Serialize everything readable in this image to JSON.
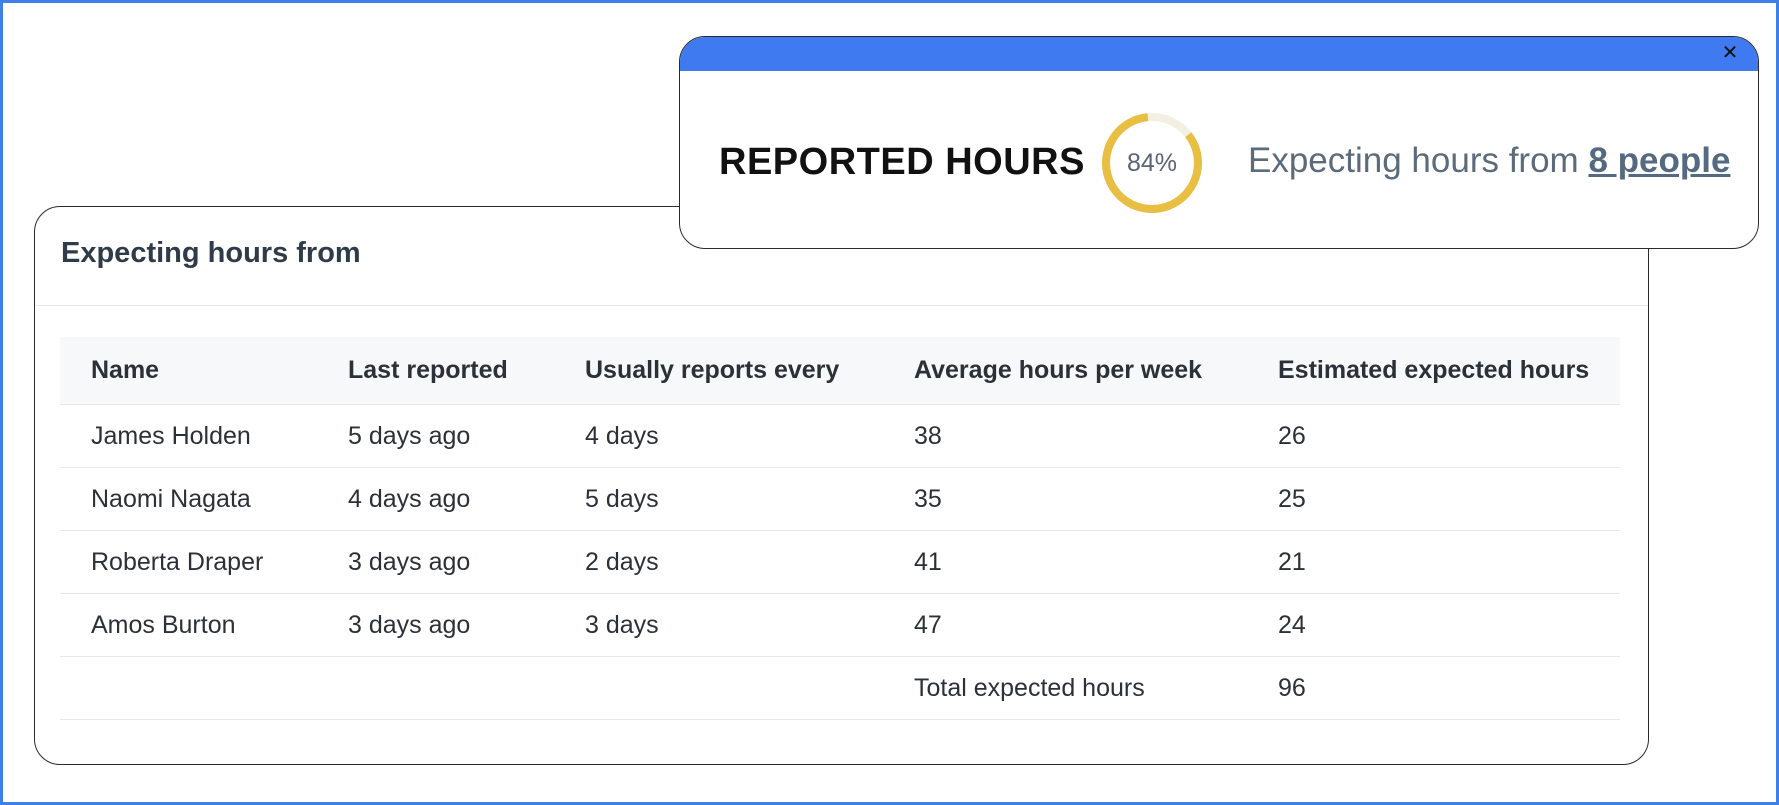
{
  "card": {
    "title": "Expecting hours from",
    "columns": [
      "Name",
      "Last reported",
      "Usually reports every",
      "Average hours per week",
      "Estimated expected hours"
    ],
    "rows": [
      [
        "James Holden",
        "5 days ago",
        "4 days",
        "38",
        "26"
      ],
      [
        "Naomi Nagata",
        "4 days ago",
        "5 days",
        "35",
        "25"
      ],
      [
        "Roberta Draper",
        "3 days ago",
        "2 days",
        "41",
        "21"
      ],
      [
        "Amos Burton",
        "3 days ago",
        "3 days",
        "47",
        "24"
      ]
    ],
    "total": {
      "label": "Total expected hours",
      "value": "96"
    }
  },
  "popup": {
    "title": "REPORTED HOURS",
    "gauge": {
      "percent": 84,
      "label": "84%",
      "color": "#e8bf42",
      "track_color": "#f3f0e2"
    },
    "expect_prefix": "Expecting hours from ",
    "people_link": "8 people",
    "close_icon": "close-icon",
    "bar_color": "#3f7af0"
  }
}
